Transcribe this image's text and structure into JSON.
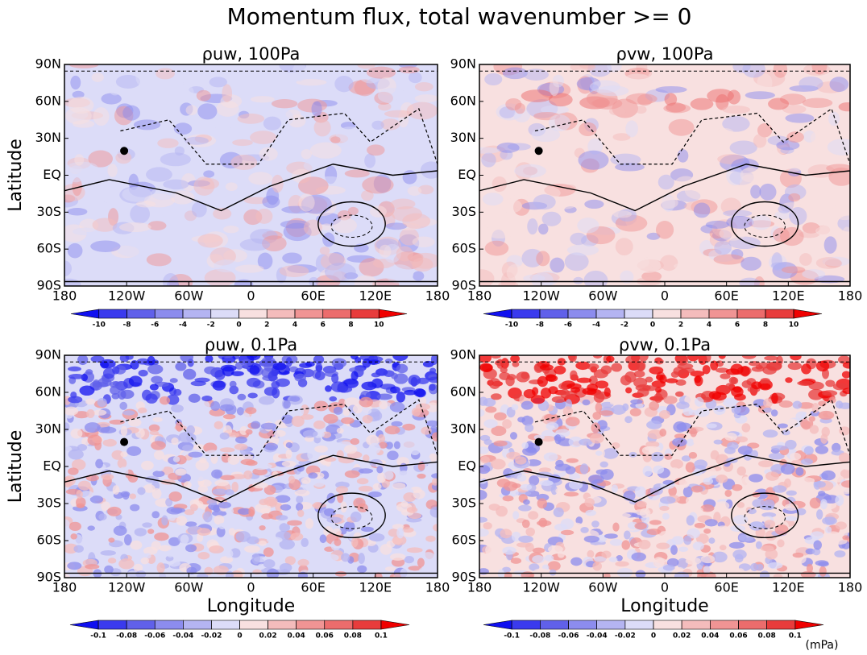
{
  "title": "Momentum flux, total wavenumber >= 0",
  "panels": [
    {
      "title": "ρuw, 100Pa",
      "ylabel": "Latitude",
      "xticks": [
        "180",
        "120W",
        "60W",
        "0",
        "60E",
        "120E",
        "180"
      ],
      "yticks": [
        "90N",
        "60N",
        "30N",
        "EQ",
        "30S",
        "60S",
        "90S"
      ]
    },
    {
      "title": "ρvw, 100Pa",
      "xticks": [
        "180",
        "120W",
        "60W",
        "0",
        "60E",
        "120E",
        "180"
      ],
      "yticks": [
        "90N",
        "60N",
        "30N",
        "EQ",
        "30S",
        "60S",
        "90S"
      ]
    },
    {
      "title": "ρuw, 0.1Pa",
      "ylabel": "Latitude",
      "xlabel": "Longitude",
      "xticks": [
        "180",
        "120W",
        "60W",
        "0",
        "60E",
        "120E",
        "180"
      ],
      "yticks": [
        "90N",
        "60N",
        "30N",
        "EQ",
        "30S",
        "60S",
        "90S"
      ]
    },
    {
      "title": "ρvw, 0.1Pa",
      "xlabel": "Longitude",
      "xticks": [
        "180",
        "120W",
        "60W",
        "0",
        "60E",
        "120E",
        "180"
      ],
      "yticks": [
        "90N",
        "60N",
        "30N",
        "EQ",
        "30S",
        "60S",
        "90S"
      ]
    }
  ],
  "colorbars": [
    {
      "ticks": [
        -10,
        -8,
        -6,
        -4,
        -2,
        0,
        2,
        4,
        6,
        8,
        10
      ]
    },
    {
      "ticks": [
        -10,
        -8,
        -6,
        -4,
        -2,
        0,
        2,
        4,
        6,
        8,
        10
      ]
    },
    {
      "ticks": [
        -0.1,
        -0.08,
        -0.06,
        -0.04,
        -0.02,
        0,
        0.02,
        0.04,
        0.06,
        0.08,
        0.1
      ]
    },
    {
      "ticks": [
        -0.1,
        -0.08,
        -0.06,
        -0.04,
        -0.02,
        0,
        0.02,
        0.04,
        0.06,
        0.08,
        0.1
      ],
      "unit": "(mPa)"
    }
  ],
  "colors": [
    "#1010f0",
    "#3a3aee",
    "#6060ea",
    "#8c8cee",
    "#b4b4f2",
    "#dcdcf8",
    "#f8e0e0",
    "#f4bcbc",
    "#f09494",
    "#ec6c6c",
    "#e83c3c",
    "#f00000"
  ]
}
